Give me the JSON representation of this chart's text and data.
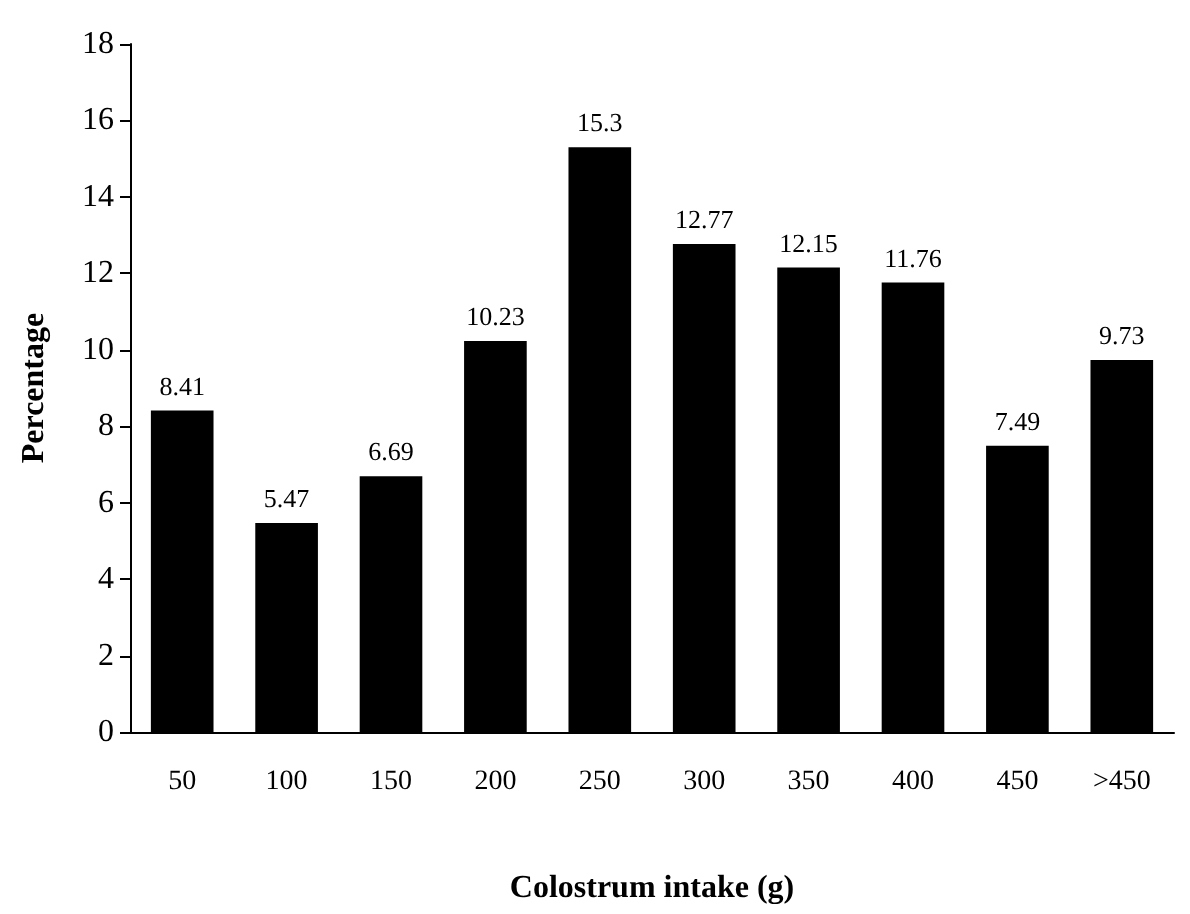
{
  "chart_data": {
    "type": "bar",
    "xlabel": "Colostrum intake (g)",
    "ylabel": "Percentage",
    "categories": [
      "50",
      "100",
      "150",
      "200",
      "250",
      "300",
      "350",
      "400",
      "450",
      ">450"
    ],
    "values": [
      8.41,
      5.47,
      6.69,
      10.23,
      15.3,
      12.77,
      12.15,
      11.76,
      7.49,
      9.73
    ],
    "color": "#000000",
    "ylim": [
      0,
      18
    ],
    "yticks": [
      0,
      2,
      4,
      6,
      8,
      10,
      12,
      14,
      16,
      18
    ],
    "grid": false,
    "data_labels": true
  }
}
